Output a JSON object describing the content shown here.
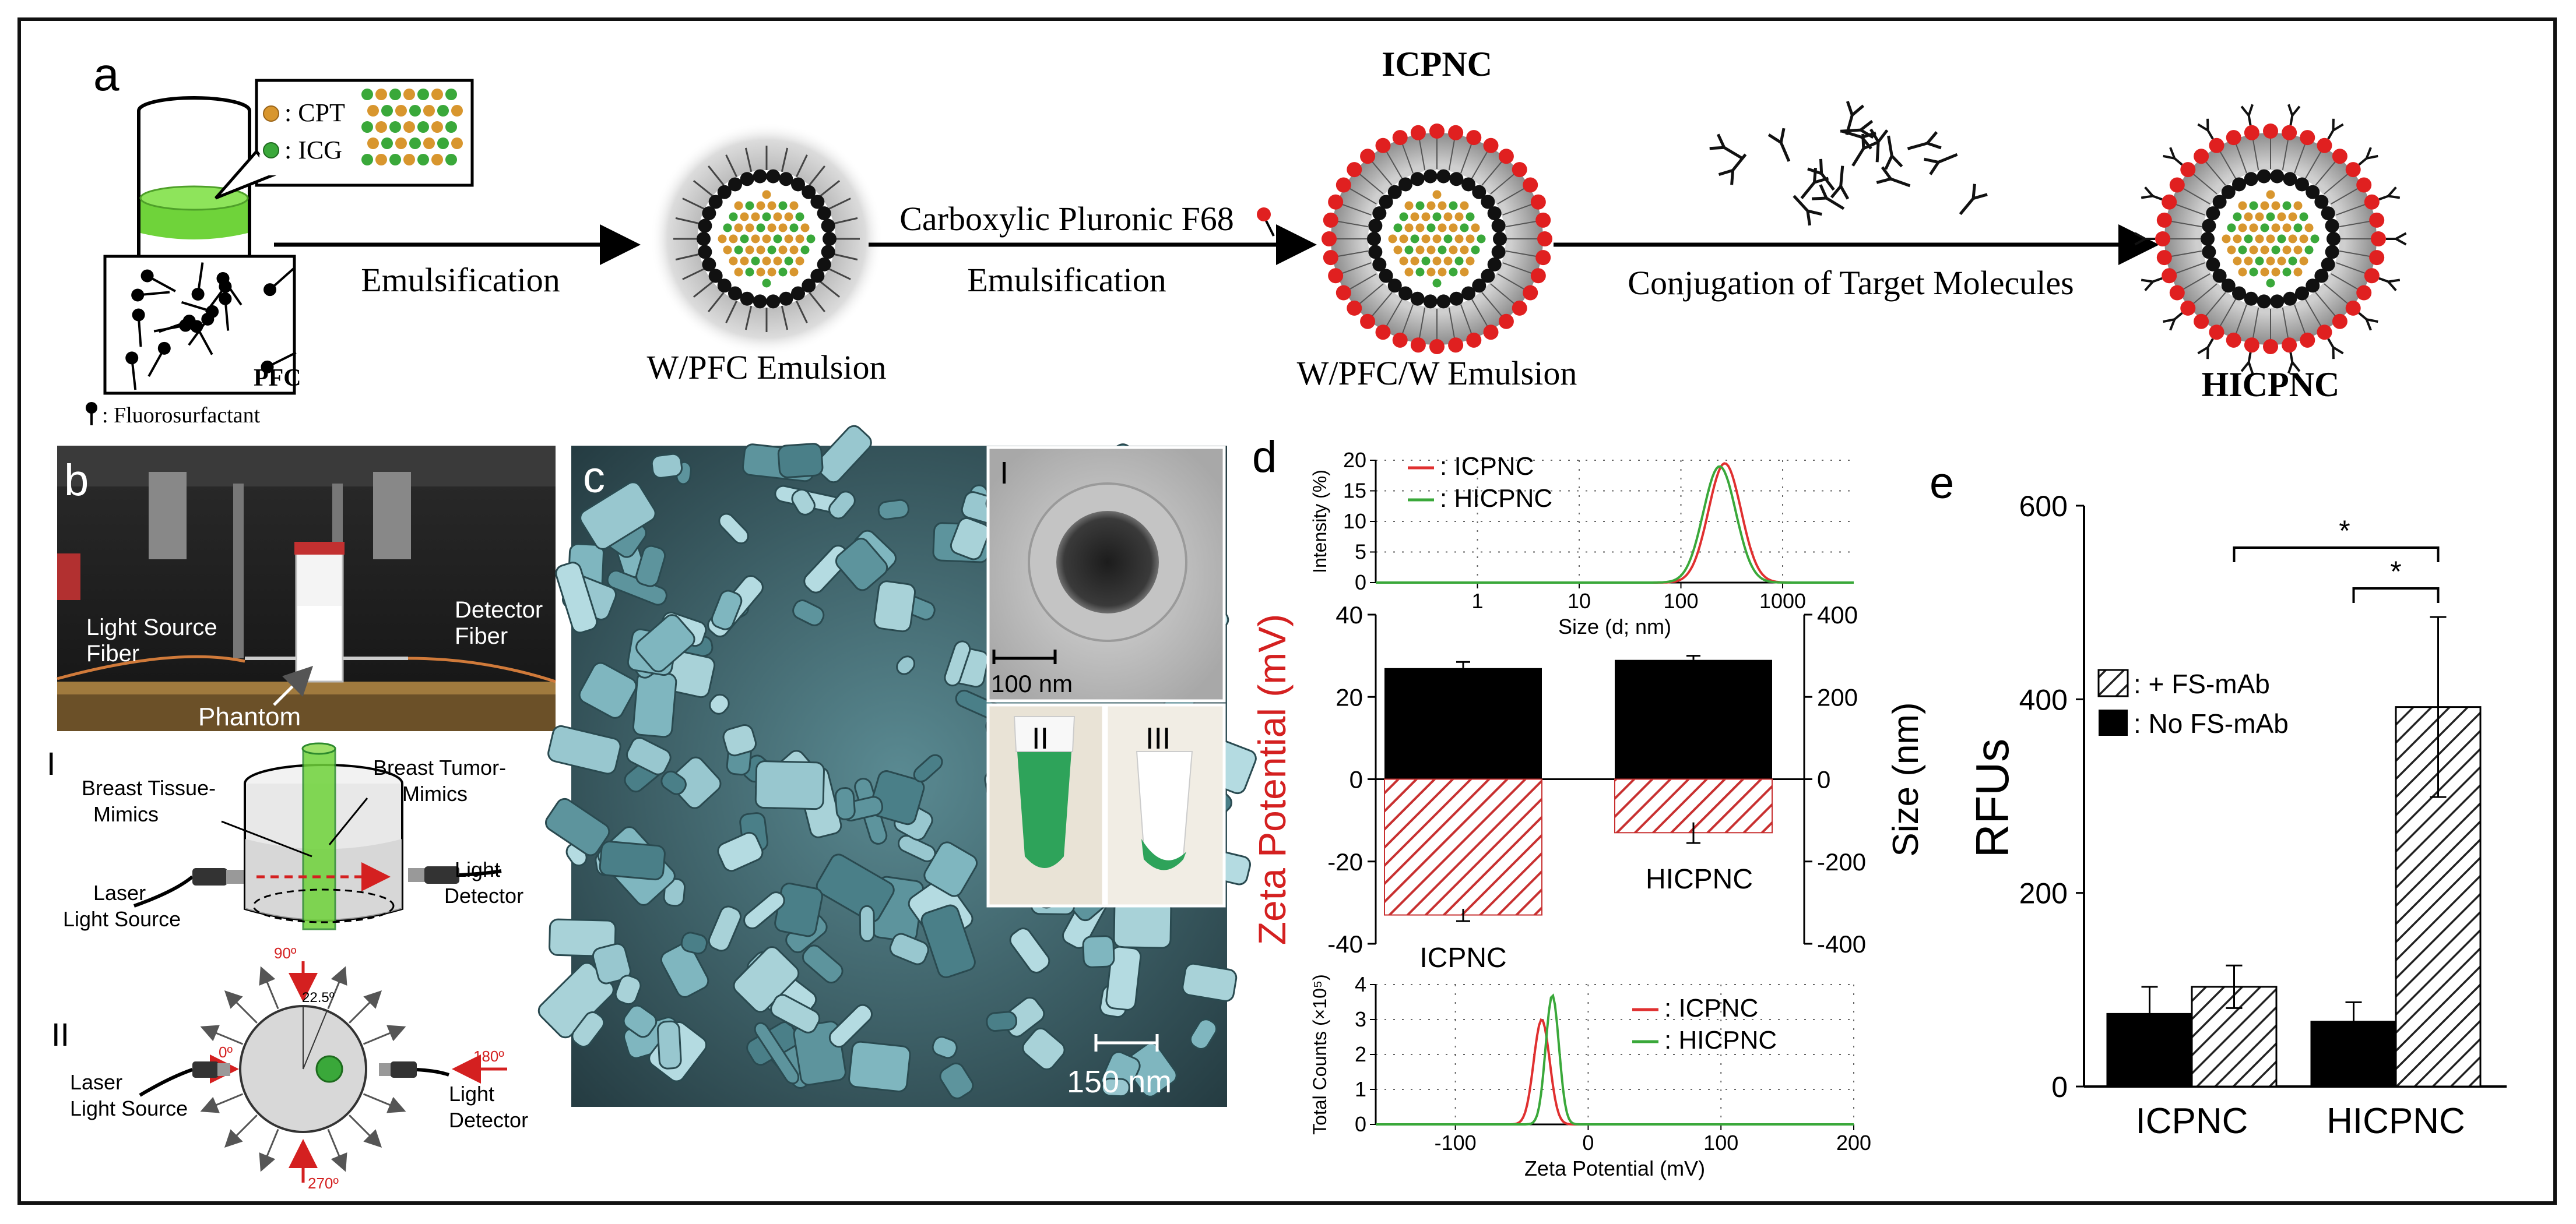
{
  "figure": {
    "panels": {
      "a": "a",
      "b": "b",
      "c": "c",
      "d": "d",
      "e": "e"
    },
    "panel_a": {
      "legend_cpt": ": CPT",
      "legend_icg": ": ICG",
      "pfc_label": "PFC",
      "fluorosurfactant_label": ": Fluorosurfactant",
      "step1": "Emulsification",
      "product1": "W/PFC Emulsion",
      "step2_line1": "Carboxylic Pluronic F68",
      "step2_line2": "Emulsification",
      "product2_title": "ICPNC",
      "product2": "W/PFC/W Emulsion",
      "step3": "Conjugation of Target Molecules",
      "product3": "HICPNC",
      "colors": {
        "cpt": "#d8962e",
        "icg": "#3aa83a",
        "core_ring": "#111111",
        "shell": "#e02020",
        "green_liquid": "#6fd33a"
      }
    },
    "panel_b": {
      "photo_labels": {
        "light_source": [
          "Light Source",
          "Fiber"
        ],
        "detector": [
          "Detector",
          "Fiber"
        ],
        "phantom": "Phantom"
      },
      "schematic_I": {
        "numeral": "I",
        "tissue": [
          "Breast Tissue-",
          "Mimics"
        ],
        "tumor": [
          "Breast Tumor-",
          "Mimics"
        ],
        "laser": [
          "Laser",
          "Light Source"
        ],
        "detector": [
          "Light",
          "Detector"
        ]
      },
      "schematic_II": {
        "numeral": "II",
        "angle_90": "90º",
        "angle_22": "22.5º",
        "angle_0": "0º",
        "angle_180": "180º",
        "angle_270": "270º",
        "laser": [
          "Laser",
          "Light Source"
        ],
        "detector": [
          "Light",
          "Detector"
        ]
      }
    },
    "panel_c": {
      "scale_bar": "150 nm",
      "inset_I": "I",
      "inset_I_scale": "100 nm",
      "inset_II": "II",
      "inset_III": "III"
    }
  },
  "chart_data": [
    {
      "id": "d-top",
      "type": "line",
      "xscale": "log",
      "xlabel": "Size (d; nm)",
      "ylabel": "Intensity (%)",
      "x_ticks": [
        "1",
        "10",
        "100",
        "1000"
      ],
      "y_ticks": [
        "0",
        "5",
        "10",
        "15",
        "20"
      ],
      "xlim": [
        0.1,
        5000
      ],
      "ylim": [
        0,
        20
      ],
      "grid": true,
      "legend": [
        ": ICPNC",
        ": HICPNC"
      ],
      "series": [
        {
          "name": "ICPNC",
          "color": "#e03030",
          "center": 270,
          "sigma": 0.16,
          "peak": 19.5
        },
        {
          "name": "HICPNC",
          "color": "#3aa83a",
          "center": 240,
          "sigma": 0.16,
          "peak": 19.0
        }
      ]
    },
    {
      "id": "d-main",
      "type": "bar",
      "categories": [
        "ICPNC",
        "HICPNC"
      ],
      "left_axis": {
        "label": "Zeta Potential (mV)",
        "ylim": [
          -40,
          40
        ],
        "ticks": [
          "-40",
          "-20",
          "0",
          "20",
          "40"
        ],
        "color": "#d42020"
      },
      "right_axis": {
        "label": "Size (nm)",
        "ylim": [
          -400,
          400
        ],
        "ticks": [
          "-400",
          "-200",
          "0",
          "200",
          "400"
        ]
      },
      "series": [
        {
          "name": "Zeta Potential",
          "axis": "left",
          "values": [
            -33,
            -13
          ],
          "errors": [
            1.5,
            2.5
          ],
          "fill": "hatched-red"
        },
        {
          "name": "Size",
          "axis": "right",
          "values": [
            270,
            290
          ],
          "errors": [
            15,
            10
          ],
          "fill": "#000000"
        }
      ]
    },
    {
      "id": "d-bottom",
      "type": "line",
      "xlabel": "Zeta Potential (mV)",
      "ylabel": "Total Counts (×10⁵)",
      "x_ticks": [
        "-100",
        "0",
        "100",
        "200"
      ],
      "y_ticks": [
        "0",
        "1",
        "2",
        "3",
        "4"
      ],
      "xlim": [
        -160,
        200
      ],
      "ylim": [
        0,
        4
      ],
      "grid": true,
      "legend": [
        ": ICPNC",
        ": HICPNC"
      ],
      "series": [
        {
          "name": "ICPNC",
          "color": "#e03030",
          "center": -35,
          "sigma": 6,
          "peak": 3.0
        },
        {
          "name": "HICPNC",
          "color": "#3aa83a",
          "center": -27,
          "sigma": 5,
          "peak": 3.7
        }
      ]
    },
    {
      "id": "e",
      "type": "bar",
      "categories": [
        "ICPNC",
        "HICPNC"
      ],
      "ylabel": "RFUs",
      "ylim": [
        0,
        600
      ],
      "y_ticks": [
        "0",
        "200",
        "400",
        "600"
      ],
      "legend": [
        ": + FS-mAb",
        ": No FS-mAb"
      ],
      "series": [
        {
          "name": "No FS-mAb",
          "values": [
            75,
            67
          ],
          "errors": [
            28,
            20
          ],
          "fill": "#000000"
        },
        {
          "name": "+ FS-mAb",
          "values": [
            103,
            392
          ],
          "errors": [
            22,
            93
          ],
          "fill": "hatched"
        }
      ],
      "significance": [
        "*",
        "*"
      ]
    }
  ]
}
